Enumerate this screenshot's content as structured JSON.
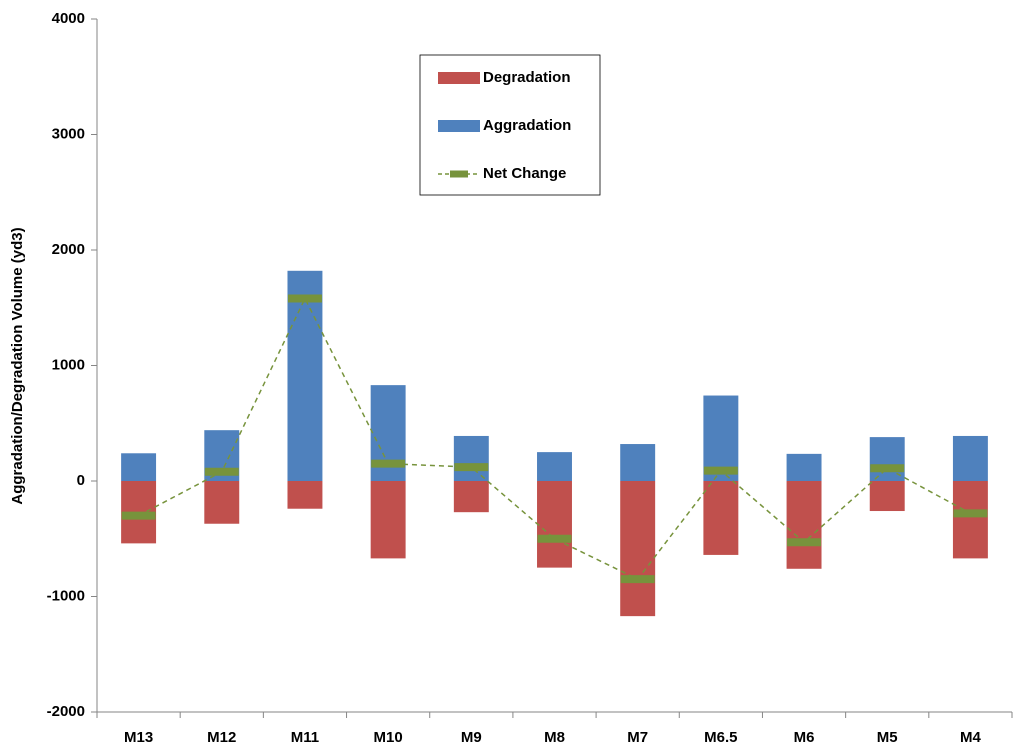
{
  "chart_data": {
    "type": "bar",
    "y_label": "Aggradation/Degradation Volume (yd3)",
    "categories": [
      "M13",
      "M12",
      "M11",
      "M10",
      "M9",
      "M8",
      "M7",
      "M6.5",
      "M6",
      "M5",
      "M4"
    ],
    "series": [
      {
        "name": "Degradation",
        "color": "#c0504d",
        "values": [
          -540,
          -370,
          -240,
          -670,
          -270,
          -750,
          -1170,
          -640,
          -760,
          -260,
          -670
        ]
      },
      {
        "name": "Aggradation",
        "color": "#4f81bd",
        "values": [
          240,
          440,
          1820,
          830,
          390,
          250,
          320,
          740,
          235,
          380,
          390
        ]
      },
      {
        "name": "Net Change",
        "type": "line",
        "color": "#77933c",
        "values": [
          -300,
          80,
          1580,
          150,
          120,
          -500,
          -850,
          90,
          -530,
          110,
          -280
        ]
      }
    ],
    "ylim": [
      -2000,
      4000
    ],
    "yticks": [
      -2000,
      -1000,
      0,
      1000,
      2000,
      3000,
      4000
    ],
    "grid": false,
    "legend": "upper center"
  }
}
